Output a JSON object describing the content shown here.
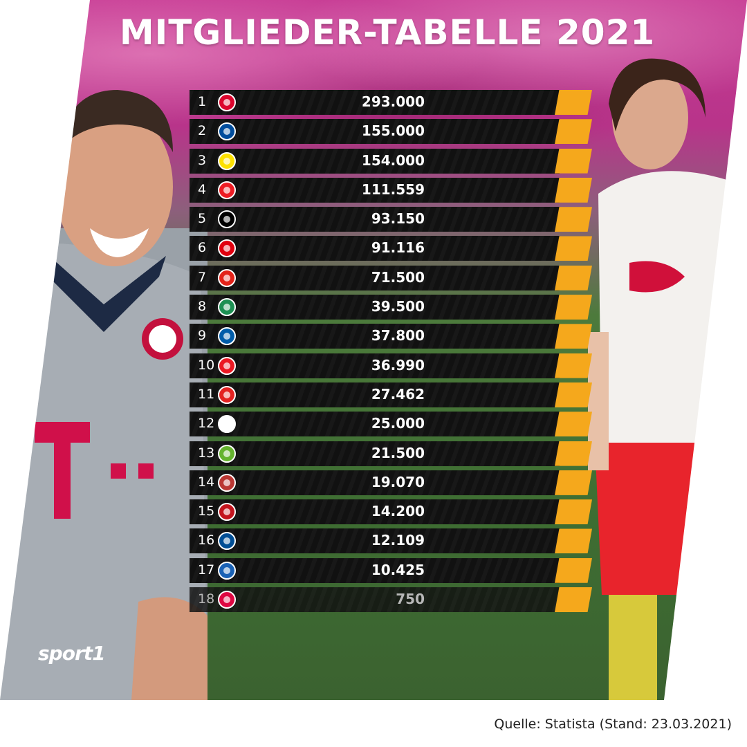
{
  "title": "MITGLIEDER-TABELLE 2021",
  "brand": "sport1",
  "source": "Quelle: Statista (Stand: 23.03.2021)",
  "colors": {
    "accent": "#f5a81c",
    "row_bg": "#111111",
    "title_bg": "#c63a93"
  },
  "rows": [
    {
      "rank": "1",
      "value": "293.000",
      "logo_color": "#dc052d",
      "logo": "bayern-icon"
    },
    {
      "rank": "2",
      "value": "155.000",
      "logo_color": "#004d9d",
      "logo": "schalke-icon"
    },
    {
      "rank": "3",
      "value": "154.000",
      "logo_color": "#fde100",
      "logo": "bvb-icon"
    },
    {
      "rank": "4",
      "value": "111.559",
      "logo_color": "#ed1c24",
      "logo": "koeln-icon"
    },
    {
      "rank": "5",
      "value": "93.150",
      "logo_color": "#000000",
      "logo": "gladbach-icon"
    },
    {
      "rank": "6",
      "value": "91.116",
      "logo_color": "#e1000f",
      "logo": "frankfurt-icon"
    },
    {
      "rank": "7",
      "value": "71.500",
      "logo_color": "#e32219",
      "logo": "stuttgart-icon"
    },
    {
      "rank": "8",
      "value": "39.500",
      "logo_color": "#1d9053",
      "logo": "werder-icon"
    },
    {
      "rank": "9",
      "value": "37.800",
      "logo_color": "#005ca9",
      "logo": "hertha-icon"
    },
    {
      "rank": "10",
      "value": "36.990",
      "logo_color": "#eb1923",
      "logo": "union-icon"
    },
    {
      "rank": "11",
      "value": "27.462",
      "logo_color": "#e32221",
      "logo": "leverkusen-icon"
    },
    {
      "rank": "12",
      "value": "25.000",
      "logo_color": "#ffffff",
      "logo": "freiburg-icon"
    },
    {
      "rank": "13",
      "value": "21.500",
      "logo_color": "#65b32e",
      "logo": "wolfsburg-icon"
    },
    {
      "rank": "14",
      "value": "19.070",
      "logo_color": "#ba3733",
      "logo": "augsburg-icon"
    },
    {
      "rank": "15",
      "value": "14.200",
      "logo_color": "#c3141e",
      "logo": "mainz-icon"
    },
    {
      "rank": "16",
      "value": "12.109",
      "logo_color": "#004e95",
      "logo": "bielefeld-icon"
    },
    {
      "rank": "17",
      "value": "10.425",
      "logo_color": "#1961b5",
      "logo": "hoffenheim-icon"
    },
    {
      "rank": "18",
      "value": "750",
      "logo_color": "#dd0741",
      "logo": "leipzig-icon"
    }
  ]
}
